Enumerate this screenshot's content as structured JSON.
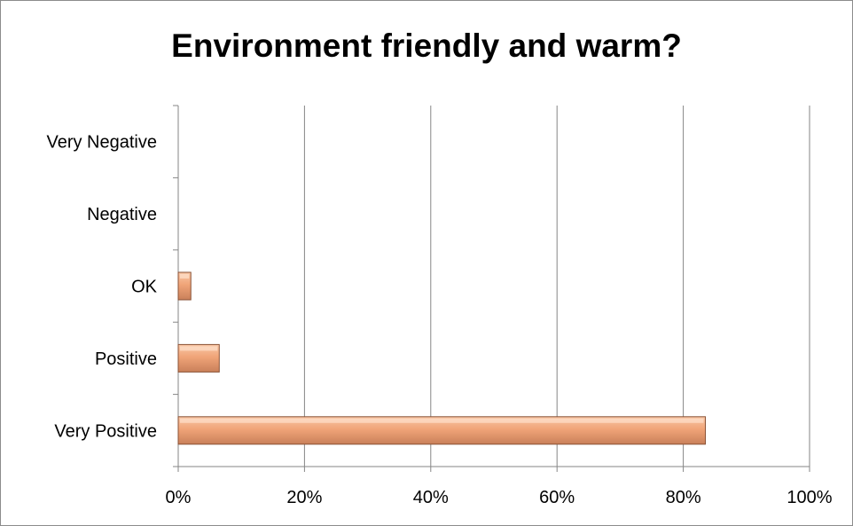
{
  "chart_data": {
    "type": "bar",
    "orientation": "horizontal",
    "title": "Environment friendly and warm?",
    "categories": [
      "Very Negative",
      "Negative",
      "OK",
      "Positive",
      "Very Positive"
    ],
    "values": [
      0,
      0,
      2,
      6.5,
      83.5
    ],
    "value_unit": "%",
    "xlim": [
      0,
      100
    ],
    "x_ticks": [
      "0%",
      "20%",
      "40%",
      "60%",
      "80%",
      "100%"
    ],
    "x_tick_values": [
      0,
      20,
      40,
      60,
      80,
      100
    ],
    "grid": "vertical",
    "legend": "none",
    "colors": {
      "bar_fill_top": "#f9c7a6",
      "bar_fill_mid": "#f0a478",
      "bar_fill_bottom": "#c9805a",
      "bar_stroke": "#8a5236",
      "grid": "#868686",
      "axis": "#868686"
    }
  }
}
